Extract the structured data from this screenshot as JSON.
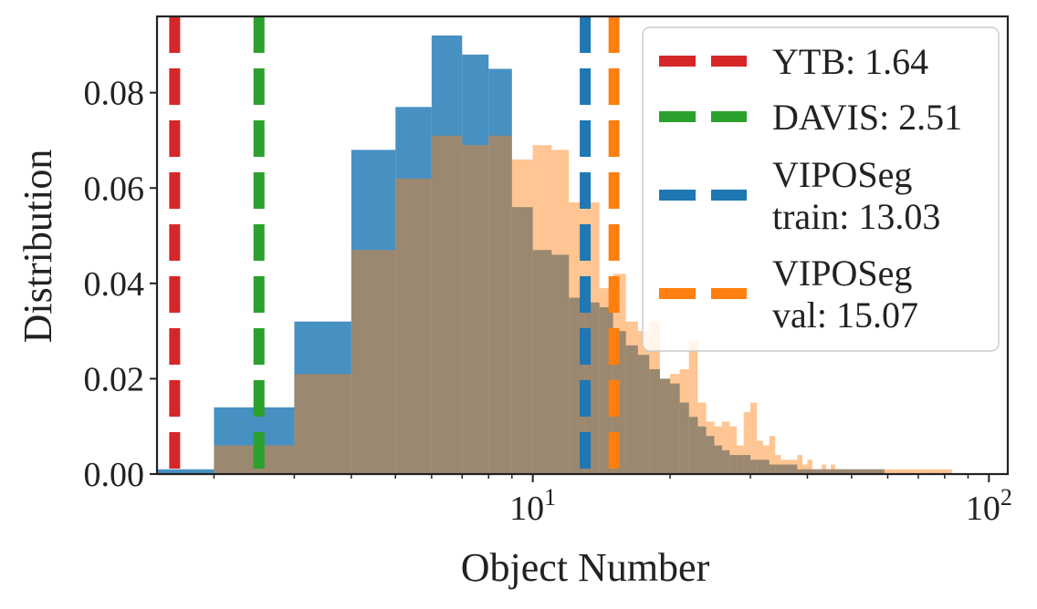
{
  "chart_data": {
    "type": "bar",
    "title": "",
    "xlabel": "Object Number",
    "ylabel": "Distribution",
    "xscale": "log",
    "xlim": [
      1.5,
      110
    ],
    "ylim": [
      0,
      0.096
    ],
    "grid": false,
    "legend_position": "top-right",
    "xticks": [
      {
        "value": 10,
        "base": "10",
        "exp": "1"
      },
      {
        "value": 100,
        "base": "10",
        "exp": "2"
      }
    ],
    "yticks": [
      {
        "value": 0.0,
        "label": "0.00"
      },
      {
        "value": 0.02,
        "label": "0.02"
      },
      {
        "value": 0.04,
        "label": "0.04"
      },
      {
        "value": 0.06,
        "label": "0.06"
      },
      {
        "value": 0.08,
        "label": "0.08"
      }
    ],
    "series": [
      {
        "name": "VIPOSeg train",
        "color": "#1f77b4",
        "opacity": 0.82,
        "x": [
          1.5,
          2,
          3,
          4,
          5,
          6,
          7,
          8,
          9,
          10,
          11,
          12,
          13,
          14,
          15,
          16,
          17,
          18,
          19,
          20,
          21,
          22,
          23,
          24,
          25,
          26,
          27,
          28,
          29,
          30,
          31,
          32,
          33,
          34,
          35,
          36,
          37,
          38,
          39,
          40,
          41,
          42,
          43,
          44,
          45,
          46,
          47,
          48,
          49,
          50,
          51,
          52,
          53,
          54,
          55,
          56,
          57,
          58
        ],
        "y": [
          0.001,
          0.014,
          0.032,
          0.068,
          0.077,
          0.092,
          0.088,
          0.085,
          0.056,
          0.047,
          0.046,
          0.037,
          0.036,
          0.035,
          0.03,
          0.027,
          0.025,
          0.022,
          0.02,
          0.019,
          0.015,
          0.012,
          0.01,
          0.008,
          0.006,
          0.005,
          0.004,
          0.004,
          0.004,
          0.003,
          0.003,
          0.003,
          0.002,
          0.002,
          0.002,
          0.002,
          0.002,
          0.001,
          0.001,
          0.001,
          0.001,
          0.001,
          0.001,
          0.001,
          0.001,
          0.001,
          0.001,
          0.001,
          0.001,
          0.001,
          0.001,
          0.001,
          0.001,
          0.001,
          0.001,
          0.001,
          0.001,
          0.001
        ]
      },
      {
        "name": "VIPOSeg val",
        "color": "#ff7f0e",
        "opacity": 0.45,
        "x": [
          1.5,
          2,
          3,
          4,
          5,
          6,
          7,
          8,
          9,
          10,
          11,
          12,
          13,
          14,
          15,
          16,
          17,
          18,
          19,
          20,
          21,
          22,
          23,
          24,
          25,
          26,
          27,
          28,
          29,
          30,
          31,
          32,
          33,
          34,
          35,
          36,
          37,
          38,
          39,
          40,
          41,
          42,
          43,
          44,
          45,
          46,
          47,
          48,
          49,
          50,
          51,
          52,
          53,
          54,
          55,
          56,
          57,
          58,
          59,
          60,
          61,
          62,
          63,
          64,
          65,
          66,
          67,
          68,
          69,
          70,
          71,
          72,
          73,
          74,
          75,
          76,
          77,
          78,
          79,
          80,
          81,
          82
        ],
        "y": [
          0,
          0.006,
          0.021,
          0.047,
          0.062,
          0.071,
          0.069,
          0.071,
          0.066,
          0.069,
          0.068,
          0.057,
          0.057,
          0.039,
          0.042,
          0.032,
          0.03,
          0.032,
          0.02,
          0.021,
          0.022,
          0.028,
          0.015,
          0.011,
          0.01,
          0.011,
          0.01,
          0.006,
          0.013,
          0.015,
          0.007,
          0.006,
          0.008,
          0.004,
          0.003,
          0.003,
          0.003,
          0.004,
          0.002,
          0.003,
          0.001,
          0.001,
          0.002,
          0.001,
          0.002,
          0.001,
          0.001,
          0.001,
          0.001,
          0.001,
          0.001,
          0.001,
          0.001,
          0.001,
          0.001,
          0.001,
          0.001,
          0.001,
          0.001,
          0.001,
          0.001,
          0.001,
          0.001,
          0.001,
          0.001,
          0.001,
          0.001,
          0.001,
          0.001,
          0.001,
          0.001,
          0.001,
          0.001,
          0.001,
          0.001,
          0.001,
          0.001,
          0.001,
          0.001,
          0.001,
          0.001,
          0.001
        ]
      }
    ],
    "vlines": [
      {
        "name": "YTB",
        "label": "YTB: 1.64",
        "x": 1.64,
        "color": "#d62728"
      },
      {
        "name": "DAVIS",
        "label": "DAVIS: 2.51",
        "x": 2.51,
        "color": "#2ca02c"
      },
      {
        "name": "VIPOSeg train",
        "label": "VIPOSeg\ntrain: 13.03",
        "x": 13.03,
        "color": "#1f77b4"
      },
      {
        "name": "VIPOSeg val",
        "label": "VIPOSeg\nval: 15.07",
        "x": 15.07,
        "color": "#ff7f0e"
      }
    ]
  }
}
